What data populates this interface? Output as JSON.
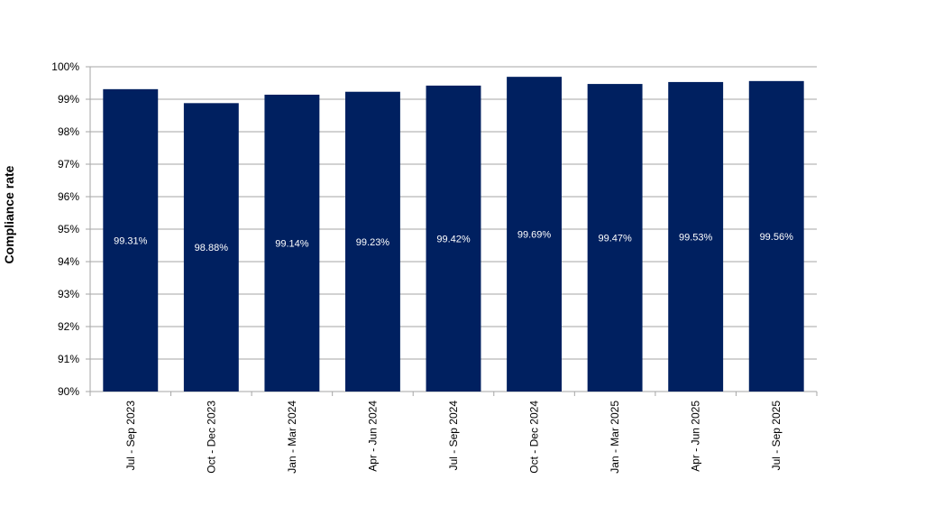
{
  "chart_data": {
    "type": "bar",
    "title": "",
    "xlabel": "",
    "ylabel": "Compliance rate",
    "categories": [
      "Jul - Sep 2023",
      "Oct - Dec 2023",
      "Jan - Mar 2024",
      "Apr - Jun 2024",
      "Jul - Sep 2024",
      "Oct - Dec 2024",
      "Jan - Mar 2025",
      "Apr - Jun 2025",
      "Jul - Sep 2025"
    ],
    "values": [
      99.31,
      98.88,
      99.14,
      99.23,
      99.42,
      99.69,
      99.47,
      99.53,
      99.56
    ],
    "value_labels": [
      "99.31%",
      "98.88%",
      "99.14%",
      "99.23%",
      "99.42%",
      "99.69%",
      "99.47%",
      "99.53%",
      "99.56%"
    ],
    "ylim": [
      90,
      100
    ],
    "yticks": [
      "90%",
      "91%",
      "92%",
      "93%",
      "94%",
      "95%",
      "96%",
      "97%",
      "98%",
      "99%",
      "100%"
    ],
    "grid": true,
    "legend": "none",
    "bar_color": "#002060",
    "label_color": "#ffffff",
    "grid_color": "#a6a6a6"
  }
}
